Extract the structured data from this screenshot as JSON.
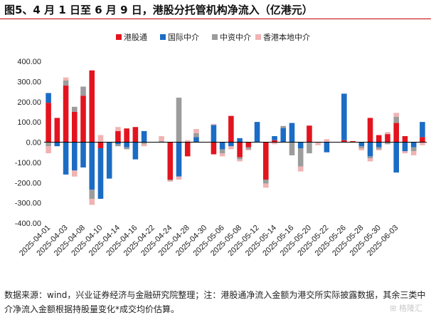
{
  "title": "图5、4 月 1 日至 6 月 9 日，港股分托管机构净流入（亿港元）",
  "footnote": "数据来源：wind，兴业证券经济与金融研究院整理；注：港股通净流入金额为港交所实际披露数据，其余三类中介净流入金额根据持股量变化*成交均价估算。",
  "watermark": "格隆汇",
  "chart_data": {
    "type": "bar",
    "stacked": true,
    "title": "",
    "xlabel": "",
    "ylabel": "",
    "ylim": [
      -400,
      400
    ],
    "yticks": [
      "400.00",
      "300.00",
      "200.00",
      "100.00",
      "0.00",
      "-100.00",
      "-200.00",
      "-300.00",
      "-400.00"
    ],
    "grid": false,
    "legend_position": "top",
    "series": [
      {
        "name": "港股通",
        "color": "#e3141e",
        "values": [
          195,
          120,
          280,
          150,
          230,
          355,
          -30,
          0,
          55,
          68,
          75,
          0,
          0,
          0,
          -185,
          0,
          -70,
          0,
          0,
          -60,
          0,
          130,
          -75,
          -25,
          0,
          -185,
          10,
          0,
          0,
          0,
          82,
          0,
          0,
          0,
          10,
          5,
          0,
          120,
          35,
          40,
          95,
          30,
          0,
          25
        ]
      },
      {
        "name": "国际中介",
        "color": "#1b6cc4",
        "values": [
          48,
          -20,
          -160,
          -140,
          -125,
          -235,
          -250,
          -180,
          -10,
          -25,
          -85,
          55,
          0,
          0,
          0,
          -170,
          0,
          25,
          0,
          85,
          -35,
          -20,
          20,
          0,
          100,
          0,
          20,
          70,
          95,
          -30,
          0,
          0,
          -50,
          0,
          230,
          0,
          -20,
          -70,
          -25,
          0,
          -150,
          -45,
          -25,
          75
        ]
      },
      {
        "name": "中资中介",
        "color": "#9c9c9c",
        "values": [
          -20,
          0,
          25,
          25,
          45,
          -45,
          0,
          0,
          -10,
          -10,
          0,
          -10,
          0,
          5,
          -5,
          220,
          0,
          20,
          0,
          0,
          -20,
          0,
          -10,
          -10,
          0,
          -20,
          0,
          10,
          -65,
          -90,
          -55,
          0,
          0,
          0,
          0,
          0,
          -10,
          -10,
          -10,
          -10,
          30,
          0,
          -20,
          0
        ]
      },
      {
        "name": "香港本地中介",
        "color": "#f0b3b3",
        "values": [
          -35,
          0,
          15,
          -30,
          0,
          -30,
          35,
          0,
          20,
          0,
          0,
          -10,
          0,
          25,
          -5,
          -15,
          10,
          20,
          0,
          5,
          -15,
          -15,
          -10,
          -5,
          0,
          -20,
          -10,
          0,
          0,
          -25,
          0,
          -15,
          15,
          0,
          0,
          0,
          -10,
          -15,
          -5,
          10,
          20,
          -10,
          -20,
          -15
        ]
      }
    ],
    "x_labels": [
      "2025-04-01",
      "2025-04-03",
      "2025-04-08",
      "2025-04-10",
      "2025-04-14",
      "2025-04-16",
      "2025-04-22",
      "2025-04-24",
      "2025-04-28",
      "2025-04-30",
      "2025-05-06",
      "2025-05-08",
      "2025-05-12",
      "2025-05-14",
      "2025-05-16",
      "2025-05-20",
      "2025-05-22",
      "2025-05-26",
      "2025-05-28",
      "2025-05-30",
      "2025-06-03"
    ],
    "x_label_every": 2
  }
}
